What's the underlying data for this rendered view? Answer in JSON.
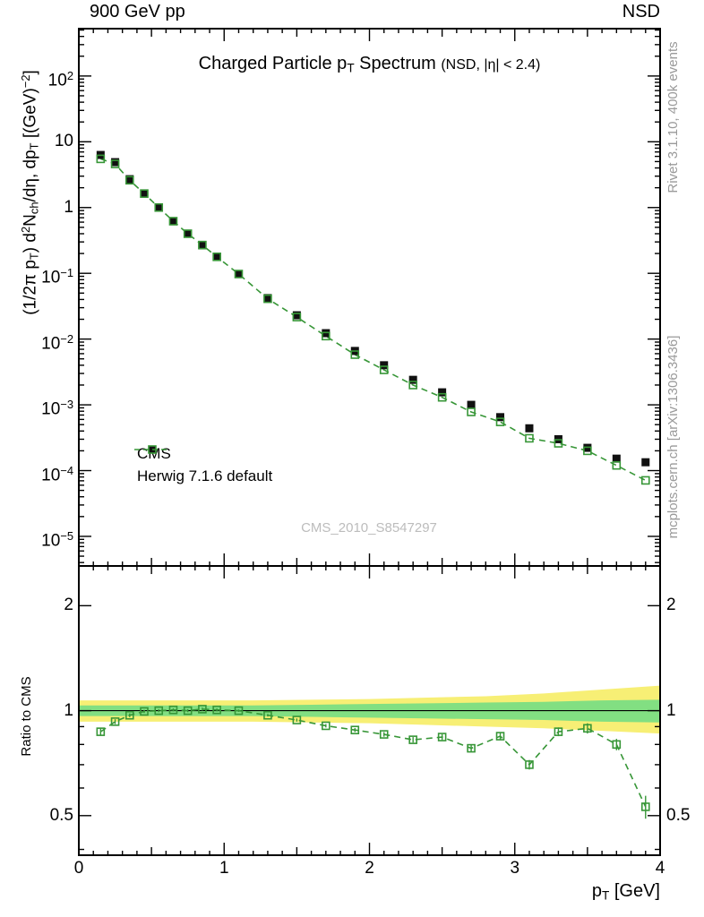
{
  "colors": {
    "cms": "#111111",
    "herwig": "#379637",
    "band_yellow": "#f7ef75",
    "band_green": "#82df82",
    "muted": "#9a9a9a",
    "watermark": "#bcbcbc",
    "frame": "#000000"
  },
  "labels": {
    "header_left": "900 GeV pp",
    "header_right": "NSD",
    "ratio_ylabel": "Ratio to CMS",
    "watermark": "CMS_2010_S8547297",
    "rivet_note": "Rivet 3.1.10,  400k events",
    "mcplots_note": "mcplots.cern.ch [arXiv:1306.3436]"
  },
  "rich": {
    "title": [
      {
        "t": "Charged Particle p"
      },
      {
        "t": "T",
        "s": "sub"
      },
      {
        "t": " Spectrum "
      },
      {
        "t": "(NSD, |η| < 2.4)",
        "s": "small"
      }
    ],
    "ylabel": [
      {
        "t": "(1/2π p"
      },
      {
        "t": "T",
        "s": "sub"
      },
      {
        "t": ") d"
      },
      {
        "t": "2",
        "s": "sup"
      },
      {
        "t": "N"
      },
      {
        "t": "ch",
        "s": "sub"
      },
      {
        "t": "/dη, dp"
      },
      {
        "t": "T",
        "s": "sub"
      },
      {
        "t": " [(GeV)"
      },
      {
        "t": "−2",
        "s": "sup"
      },
      {
        "t": "]"
      }
    ],
    "xlabel": [
      {
        "t": "p"
      },
      {
        "t": "T",
        "s": "sub"
      },
      {
        "t": " [GeV]"
      }
    ]
  },
  "legend": {
    "items": [
      {
        "id": "cms",
        "label": "CMS",
        "marker": "filled-square",
        "color": "#111111"
      },
      {
        "id": "herwig",
        "label": "Herwig 7.1.6 default",
        "marker": "open-square-dashed",
        "color": "#379637"
      }
    ]
  },
  "chart_data": [
    {
      "type": "scatter",
      "panel": "main",
      "title": "Charged Particle pT Spectrum (NSD, |eta| < 2.4)",
      "xlabel": "pT [GeV]",
      "ylabel": "(1/2pi pT) d2Nch/deta, dpT [(GeV)^-2]",
      "xlim": [
        0,
        4
      ],
      "ylog": true,
      "ylim_log10": [
        -5.45,
        2.72
      ],
      "xticks": [
        0,
        1,
        2,
        3,
        4
      ],
      "ytick_exponents": [
        2,
        1,
        0,
        -1,
        -2,
        -3,
        -4,
        -5
      ],
      "x": [
        0.15,
        0.25,
        0.35,
        0.45,
        0.55,
        0.65,
        0.75,
        0.85,
        0.95,
        1.1,
        1.3,
        1.5,
        1.7,
        1.9,
        2.1,
        2.3,
        2.5,
        2.7,
        2.9,
        3.1,
        3.3,
        3.5,
        3.7,
        3.9
      ],
      "series": [
        {
          "name": "CMS",
          "marker": "filled-square",
          "color": "#111111",
          "values": [
            6.3,
            4.9,
            2.7,
            1.64,
            1.0,
            0.62,
            0.4,
            0.266,
            0.177,
            0.0975,
            0.042,
            0.023,
            0.0123,
            0.0066,
            0.004,
            0.0024,
            0.00155,
            0.001,
            0.00065,
            0.00044,
            0.0003,
            0.000222,
            0.000152,
            0.000134
          ],
          "rel_err": [
            0.04,
            0.035,
            0.03,
            0.03,
            0.03,
            0.03,
            0.03,
            0.03,
            0.03,
            0.03,
            0.03,
            0.035,
            0.035,
            0.04,
            0.04,
            0.045,
            0.045,
            0.05,
            0.05,
            0.055,
            0.06,
            0.07,
            0.08,
            0.09
          ]
        },
        {
          "name": "Herwig 7.1.6 default",
          "marker": "open-square",
          "color": "#379637",
          "linestyle": "dashed",
          "values": [
            5.5,
            4.6,
            2.6,
            1.63,
            1.0,
            0.62,
            0.4,
            0.269,
            0.178,
            0.0975,
            0.041,
            0.0216,
            0.0111,
            0.0058,
            0.0034,
            0.002,
            0.0013,
            0.00078,
            0.00055,
            0.00031,
            0.00026,
            0.0002,
            0.00012,
            7.1e-05
          ]
        }
      ]
    },
    {
      "type": "ratio",
      "panel": "ratio",
      "ylabel": "Ratio to CMS",
      "reference": "CMS",
      "ylog": true,
      "ylim": [
        0.385,
        2.6
      ],
      "yticks": [
        0.5,
        1,
        2
      ],
      "yticks_minor": [
        0.4,
        0.6,
        0.7,
        0.8,
        0.9
      ],
      "x": [
        0.15,
        0.25,
        0.35,
        0.45,
        0.55,
        0.65,
        0.75,
        0.85,
        0.95,
        1.1,
        1.3,
        1.5,
        1.7,
        1.9,
        2.1,
        2.3,
        2.5,
        2.7,
        2.9,
        3.1,
        3.3,
        3.5,
        3.7,
        3.9
      ],
      "values": [
        0.87,
        0.93,
        0.97,
        0.995,
        1.0,
        1.005,
        1.0,
        1.01,
        1.005,
        1.0,
        0.97,
        0.94,
        0.905,
        0.88,
        0.855,
        0.825,
        0.84,
        0.78,
        0.845,
        0.7,
        0.87,
        0.89,
        0.8,
        0.53
      ],
      "errors": [
        0.02,
        0.015,
        0.012,
        0.01,
        0.01,
        0.01,
        0.01,
        0.01,
        0.01,
        0.008,
        0.008,
        0.01,
        0.01,
        0.012,
        0.013,
        0.015,
        0.016,
        0.018,
        0.02,
        0.022,
        0.025,
        0.03,
        0.03,
        0.04
      ],
      "bands": {
        "x": [
          0,
          0.4,
          0.8,
          1.2,
          1.6,
          2.0,
          2.4,
          2.8,
          3.2,
          3.6,
          4.0
        ],
        "yellow_lo": [
          0.93,
          0.93,
          0.93,
          0.93,
          0.925,
          0.92,
          0.91,
          0.9,
          0.89,
          0.875,
          0.86
        ],
        "yellow_hi": [
          1.07,
          1.07,
          1.07,
          1.07,
          1.075,
          1.08,
          1.09,
          1.1,
          1.12,
          1.15,
          1.18
        ],
        "green_lo": [
          0.965,
          0.965,
          0.965,
          0.965,
          0.96,
          0.955,
          0.95,
          0.945,
          0.94,
          0.93,
          0.925
        ],
        "green_hi": [
          1.035,
          1.035,
          1.035,
          1.035,
          1.04,
          1.045,
          1.05,
          1.055,
          1.06,
          1.07,
          1.075
        ]
      }
    }
  ]
}
